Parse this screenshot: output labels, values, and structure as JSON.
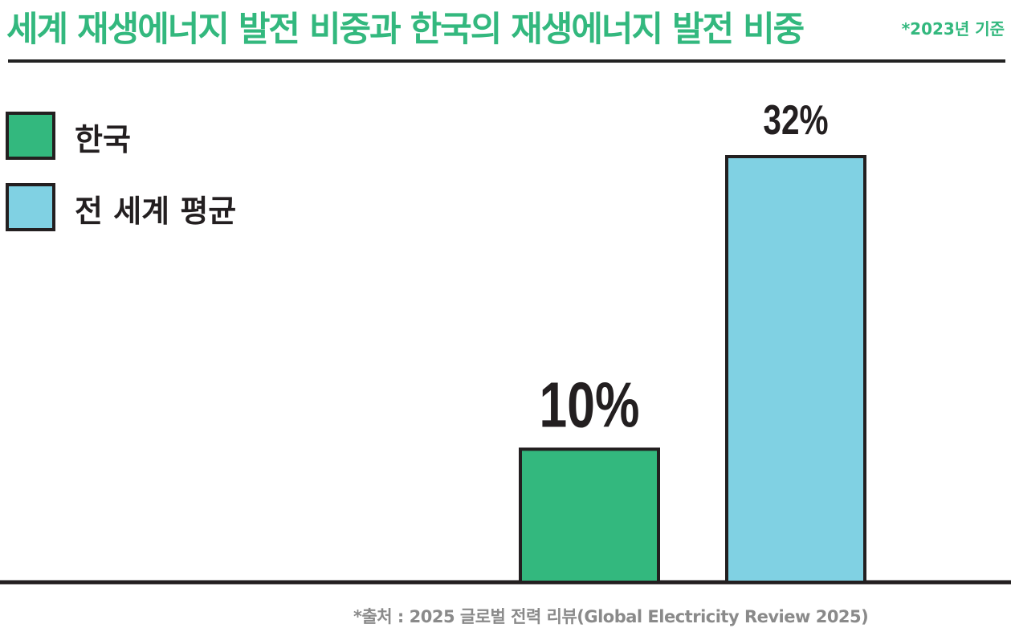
{
  "header": {
    "title": "세계 재생에너지 발전 비중과 한국의 재생에너지 발전 비중",
    "basis_note": "*2023년 기준"
  },
  "chart_data": {
    "type": "bar",
    "categories": [
      "한국",
      "전 세계 평균"
    ],
    "values": [
      10,
      32
    ],
    "value_labels": [
      "10%",
      "32%"
    ],
    "unit": "%",
    "colors": [
      "#33b87e",
      "#80d1e3"
    ],
    "legend": [
      {
        "label": "한국",
        "color": "#33b87e"
      },
      {
        "label": "전 세계 평균",
        "color": "#80d1e3"
      }
    ],
    "legend_position": "top-left",
    "grid": false,
    "ylim": [
      0,
      32
    ]
  },
  "footer": {
    "source": "*출처 : 2025 글로벌 전력 리뷰(Global Electricity Review 2025)"
  }
}
